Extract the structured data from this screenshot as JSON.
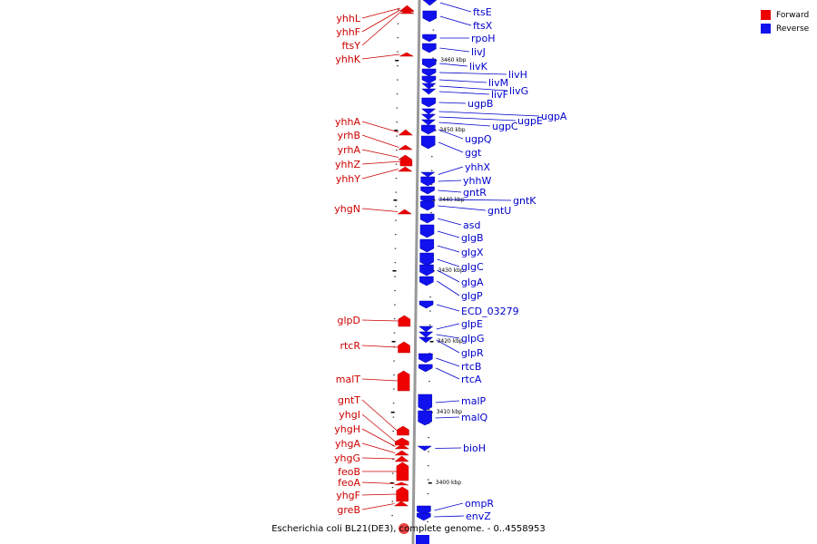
{
  "caption": "Escherichia coli BL21(DE3), complete genome. - 0..4558953",
  "legend": [
    {
      "label": "Forward",
      "color": "#ee0000"
    },
    {
      "label": "Reverse",
      "color": "#1111ee"
    }
  ],
  "scale_labels": [
    "3460 kbp",
    "3450 kbp",
    "3440 kbp",
    "3430 kbp",
    "3420 kbp",
    "3410 kbp",
    "3400 kbp"
  ],
  "forward_genes": [
    "yhhL",
    "yhhF",
    "ftsY",
    "yhhK",
    "yhhA",
    "yrhB",
    "yrhA",
    "yhhZ",
    "yhhY",
    "yhgN",
    "glpD",
    "rtcR",
    "malT",
    "gntT",
    "yhgI",
    "yhgH",
    "yhgA",
    "yhgG",
    "feoB",
    "feoA",
    "yhgF",
    "greB"
  ],
  "reverse_genes": [
    "ftsE",
    "ftsX",
    "rpoH",
    "livJ",
    "livK",
    "livH",
    "livM",
    "livG",
    "livF",
    "ugpB",
    "ugpA",
    "ugpE",
    "ugpC",
    "ugpQ",
    "ggt",
    "yhhX",
    "yhhW",
    "gntR",
    "gntK",
    "gntU",
    "asd",
    "glgB",
    "glgX",
    "glgC",
    "glgA",
    "glgP",
    "ECD_03279",
    "glpE",
    "glpG",
    "glpR",
    "rtcB",
    "rtcA",
    "malP",
    "malQ",
    "bioH",
    "ompR",
    "envZ"
  ]
}
